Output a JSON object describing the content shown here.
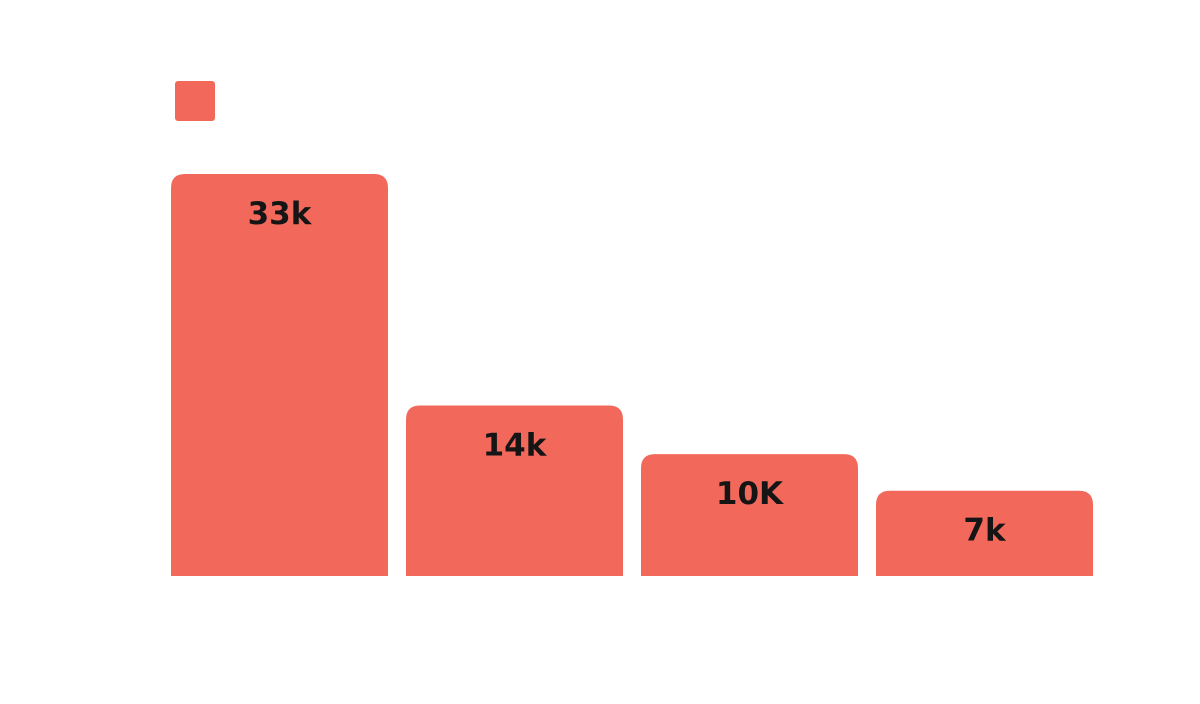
{
  "chart_data": {
    "type": "bar",
    "title": "",
    "xlabel": "",
    "ylabel": "",
    "ylim": [
      0,
      33
    ],
    "grid": false,
    "legend": "top-left",
    "categories": [
      "",
      "",
      "",
      ""
    ],
    "series": [
      {
        "color": "#f2695c",
        "values": [
          33,
          14,
          10,
          7
        ],
        "labels": [
          "33k",
          "14k",
          "10K",
          "7k"
        ]
      }
    ]
  }
}
